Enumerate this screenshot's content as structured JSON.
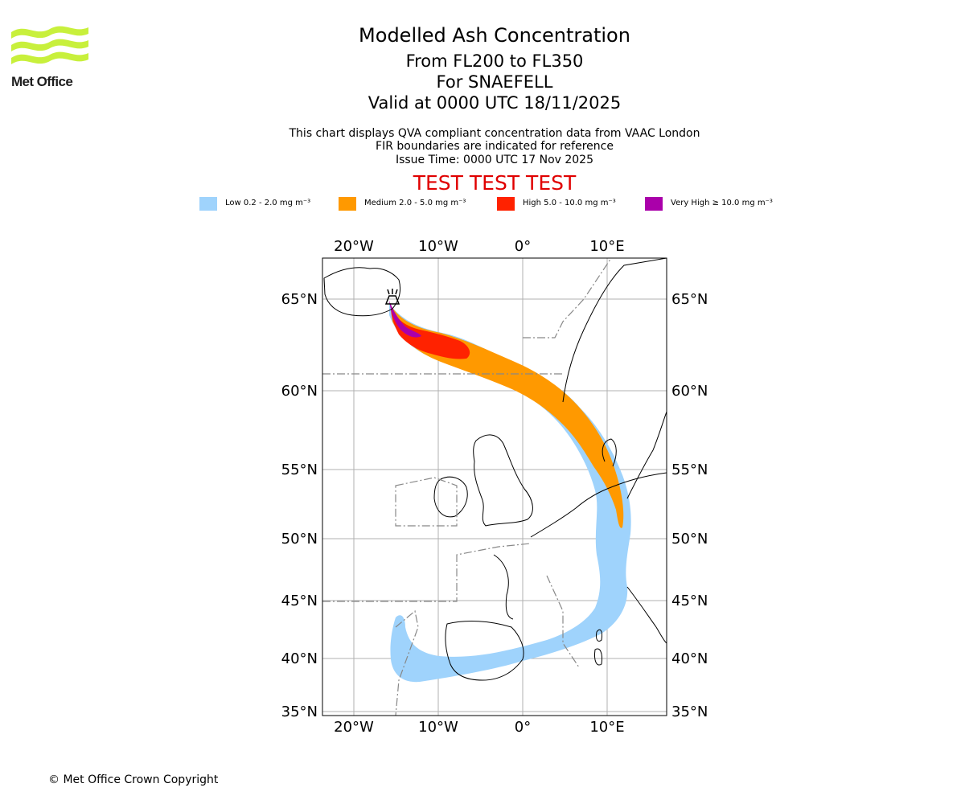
{
  "header": {
    "logo_text": "Met Office",
    "title": "Modelled Ash Concentration",
    "subtitle_levels": "From FL200 to FL350",
    "subtitle_volcano": "For SNAEFELL",
    "subtitle_valid": "Valid at 0000 UTC 18/11/2025",
    "note_line1": "This chart displays QVA compliant concentration data from VAAC London",
    "note_line2": "FIR boundaries are indicated for reference",
    "note_line3": "Issue Time: 0000 UTC 17 Nov 2025",
    "test_banner": "TEST TEST TEST"
  },
  "legend": [
    {
      "label": "Low 0.2 - 2.0 mg m⁻³",
      "color": "#9fd3fc"
    },
    {
      "label": "Medium 2.0 - 5.0 mg m⁻³",
      "color": "#ff9900"
    },
    {
      "label": "High 5.0 - 10.0 mg m⁻³",
      "color": "#ff2200"
    },
    {
      "label": "Very High  ≥  10.0 mg m⁻³",
      "color": "#aa00aa"
    }
  ],
  "map": {
    "lon_labels": [
      "20°W",
      "10°W",
      "0°",
      "10°E"
    ],
    "lat_labels": [
      "65°N",
      "60°N",
      "55°N",
      "50°N",
      "45°N",
      "40°N",
      "35°N"
    ],
    "volcano_marker": "volcano-icon"
  },
  "footer": {
    "copyright": "© Met Office Crown Copyright"
  }
}
